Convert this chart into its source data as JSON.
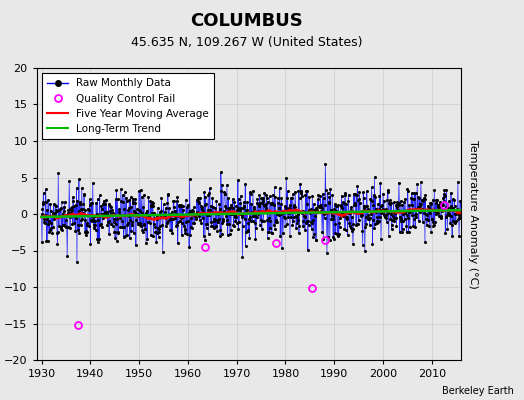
{
  "title": "COLUMBUS",
  "subtitle": "45.635 N, 109.267 W (United States)",
  "ylabel": "Temperature Anomaly (°C)",
  "credit": "Berkeley Earth",
  "xlim": [
    1929,
    2016
  ],
  "ylim": [
    -20,
    20
  ],
  "yticks": [
    -20,
    -15,
    -10,
    -5,
    0,
    5,
    10,
    15,
    20
  ],
  "xticks": [
    1930,
    1940,
    1950,
    1960,
    1970,
    1980,
    1990,
    2000,
    2010
  ],
  "raw_color": "#0000ff",
  "moving_avg_color": "#ff0000",
  "trend_color": "#00bb00",
  "qc_fail_color": "#ff00ff",
  "background_color": "#e8e8e8",
  "title_fontsize": 13,
  "subtitle_fontsize": 9,
  "label_fontsize": 8,
  "tick_fontsize": 8,
  "legend_fontsize": 7.5,
  "qc_years": [
    1937.5,
    1963.5,
    1978.0,
    1985.5,
    1988.0,
    2012.5
  ],
  "qc_vals": [
    -15.2,
    -4.5,
    -4.0,
    -10.2,
    -3.5,
    1.2
  ]
}
